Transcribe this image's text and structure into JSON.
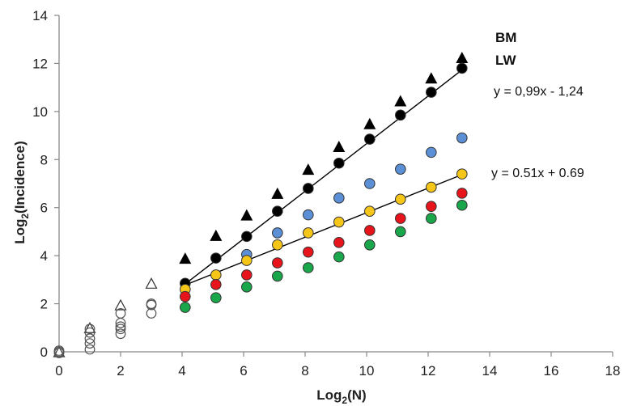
{
  "chart_data": {
    "type": "scatter",
    "xlabel": "Log",
    "xlabel_sub": "2",
    "xlabel_tail": "(N)",
    "ylabel": "Log",
    "ylabel_sub": "2",
    "ylabel_tail": "(Incidence)",
    "xlim": [
      0,
      18
    ],
    "ylim": [
      0,
      14
    ],
    "xticks": [
      0,
      2,
      4,
      6,
      8,
      10,
      12,
      14,
      16,
      18
    ],
    "yticks": [
      0,
      2,
      4,
      6,
      8,
      10,
      12,
      14
    ],
    "grid": false,
    "legend": [
      {
        "label": "BM"
      },
      {
        "label": "LW"
      }
    ],
    "annotations": [
      {
        "text": "y = 0,99x - 1,24"
      },
      {
        "text": "y = 0.51x + 0.69"
      }
    ],
    "series": [
      {
        "marker": "triangle-filled",
        "color": "#000000",
        "x": [
          4.1,
          5.1,
          6.1,
          7.1,
          8.1,
          9.1,
          10.1,
          11.1,
          12.1,
          13.1
        ],
        "y": [
          3.9,
          4.85,
          5.7,
          6.6,
          7.6,
          8.55,
          9.5,
          10.45,
          11.4,
          12.25
        ]
      },
      {
        "marker": "circle-filled",
        "color": "#000000",
        "x": [
          4.1,
          5.1,
          6.1,
          7.1,
          8.1,
          9.1,
          10.1,
          11.1,
          12.1,
          13.1
        ],
        "y": [
          2.85,
          3.9,
          4.8,
          5.85,
          6.8,
          7.85,
          8.85,
          9.85,
          10.8,
          11.8
        ]
      },
      {
        "marker": "circle-filled",
        "color": "#5b8fd6",
        "x": [
          6.1,
          7.1,
          8.1,
          9.1,
          10.1,
          11.1,
          12.1,
          13.1
        ],
        "y": [
          4.05,
          4.95,
          5.7,
          6.4,
          7.0,
          7.6,
          8.3,
          8.9
        ]
      },
      {
        "marker": "circle-filled",
        "color": "#f5c518",
        "x": [
          4.1,
          5.1,
          6.1,
          7.1,
          8.1,
          9.1,
          10.1,
          11.1,
          12.1,
          13.1
        ],
        "y": [
          2.6,
          3.2,
          3.8,
          4.45,
          4.95,
          5.4,
          5.85,
          6.35,
          6.85,
          7.4
        ]
      },
      {
        "marker": "circle-filled",
        "color": "#e8141b",
        "x": [
          4.1,
          5.1,
          6.1,
          7.1,
          8.1,
          9.1,
          10.1,
          11.1,
          12.1,
          13.1
        ],
        "y": [
          2.3,
          2.8,
          3.2,
          3.7,
          4.15,
          4.55,
          5.05,
          5.55,
          6.05,
          6.6
        ]
      },
      {
        "marker": "circle-filled",
        "color": "#1aa64a",
        "x": [
          4.1,
          5.1,
          6.1,
          7.1,
          8.1,
          9.1,
          10.1,
          11.1,
          12.1,
          13.1
        ],
        "y": [
          1.85,
          2.25,
          2.7,
          3.15,
          3.5,
          3.95,
          4.45,
          5.0,
          5.55,
          6.1
        ]
      },
      {
        "marker": "triangle-open",
        "color": "#000000",
        "x": [
          0,
          1,
          2,
          3
        ],
        "y": [
          0,
          1.0,
          1.95,
          2.85
        ]
      },
      {
        "marker": "circle-open",
        "color": "#000000",
        "x": [
          0,
          0,
          0,
          1,
          1,
          1,
          1,
          1,
          2,
          2,
          2,
          2,
          2,
          3,
          3,
          3
        ],
        "y": [
          0,
          -0.05,
          0.05,
          0.95,
          0.8,
          0.55,
          0.35,
          0.1,
          1.6,
          1.2,
          1.05,
          0.95,
          0.75,
          2.0,
          1.95,
          1.6
        ]
      }
    ],
    "trendlines": [
      {
        "x": [
          4.1,
          13.1
        ],
        "y": [
          2.82,
          11.73
        ],
        "color": "#000000"
      },
      {
        "x": [
          4.1,
          13.1
        ],
        "y": [
          2.78,
          7.37
        ],
        "color": "#000000"
      }
    ]
  }
}
